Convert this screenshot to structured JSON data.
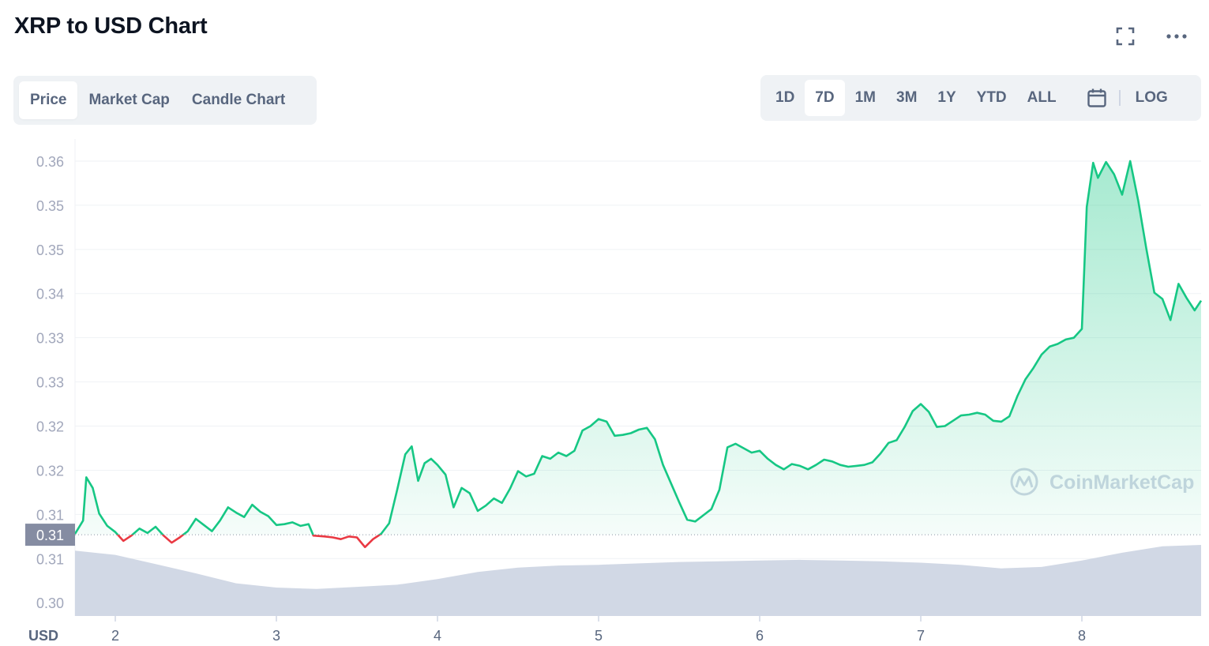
{
  "page": {
    "title": "XRP to USD Chart"
  },
  "header_icons": [
    "expand-icon",
    "more-icon"
  ],
  "tabs": [
    {
      "label": "Price",
      "active": true
    },
    {
      "label": "Market Cap",
      "active": false
    },
    {
      "label": "Candle Chart",
      "active": false
    }
  ],
  "ranges": [
    {
      "label": "1D",
      "active": false
    },
    {
      "label": "7D",
      "active": true
    },
    {
      "label": "1M",
      "active": false
    },
    {
      "label": "3M",
      "active": false
    },
    {
      "label": "1Y",
      "active": false
    },
    {
      "label": "YTD",
      "active": false
    },
    {
      "label": "ALL",
      "active": false
    }
  ],
  "calendar_icon": "calendar-icon",
  "log_label": "LOG",
  "watermark": "CoinMarketCap",
  "colors": {
    "up": "#16c784",
    "down": "#ea3943",
    "volume": "#cfd6e4",
    "text": "#58667e"
  },
  "chart_data": {
    "type": "area",
    "title": "XRP to USD Chart",
    "y_ticks": [
      "0.36",
      "0.35",
      "0.35",
      "0.34",
      "0.33",
      "0.33",
      "0.32",
      "0.32",
      "0.31",
      "0.31",
      "0.30"
    ],
    "y_tick_values": [
      0.36,
      0.355,
      0.35,
      0.345,
      0.34,
      0.335,
      0.33,
      0.325,
      0.32,
      0.315,
      0.31
    ],
    "ylim": [
      0.3085,
      0.3625
    ],
    "x_ticks": [
      "2",
      "3",
      "4",
      "5",
      "6",
      "7",
      "8"
    ],
    "x_tick_values": [
      2,
      3,
      4,
      5,
      6,
      7,
      8
    ],
    "xlim": [
      1.75,
      8.74
    ],
    "x_unit_label": "USD",
    "baseline_label": "0.31",
    "baseline": 0.3177,
    "grid": true,
    "series": [
      {
        "points": [
          [
            1.75,
            0.3178
          ],
          [
            1.8,
            0.3193
          ],
          [
            1.82,
            0.3242
          ],
          [
            1.86,
            0.323
          ],
          [
            1.9,
            0.3201
          ],
          [
            1.95,
            0.3187
          ],
          [
            2.0,
            0.318
          ],
          [
            2.05,
            0.317
          ],
          [
            2.1,
            0.3176
          ],
          [
            2.15,
            0.3184
          ],
          [
            2.2,
            0.3179
          ],
          [
            2.25,
            0.3186
          ],
          [
            2.3,
            0.3176
          ],
          [
            2.35,
            0.3168
          ],
          [
            2.4,
            0.3174
          ],
          [
            2.45,
            0.3181
          ],
          [
            2.5,
            0.3195
          ],
          [
            2.55,
            0.3188
          ],
          [
            2.6,
            0.3181
          ],
          [
            2.65,
            0.3193
          ],
          [
            2.7,
            0.3208
          ],
          [
            2.75,
            0.3202
          ],
          [
            2.8,
            0.3197
          ],
          [
            2.85,
            0.3211
          ],
          [
            2.9,
            0.3203
          ],
          [
            2.95,
            0.3198
          ],
          [
            3.0,
            0.3188
          ],
          [
            3.05,
            0.3189
          ],
          [
            3.1,
            0.3191
          ],
          [
            3.15,
            0.3187
          ],
          [
            3.2,
            0.3189
          ],
          [
            3.23,
            0.3176
          ],
          [
            3.3,
            0.3175
          ],
          [
            3.35,
            0.3174
          ],
          [
            3.4,
            0.3172
          ],
          [
            3.45,
            0.3175
          ],
          [
            3.5,
            0.3174
          ],
          [
            3.55,
            0.3163
          ],
          [
            3.6,
            0.3172
          ],
          [
            3.65,
            0.3178
          ],
          [
            3.7,
            0.319
          ],
          [
            3.75,
            0.3228
          ],
          [
            3.8,
            0.3268
          ],
          [
            3.84,
            0.3277
          ],
          [
            3.88,
            0.3238
          ],
          [
            3.92,
            0.3258
          ],
          [
            3.96,
            0.3263
          ],
          [
            4.0,
            0.3256
          ],
          [
            4.05,
            0.3245
          ],
          [
            4.1,
            0.3208
          ],
          [
            4.15,
            0.323
          ],
          [
            4.2,
            0.3224
          ],
          [
            4.25,
            0.3204
          ],
          [
            4.3,
            0.321
          ],
          [
            4.35,
            0.3218
          ],
          [
            4.4,
            0.3213
          ],
          [
            4.45,
            0.3229
          ],
          [
            4.5,
            0.3249
          ],
          [
            4.55,
            0.3243
          ],
          [
            4.6,
            0.3246
          ],
          [
            4.65,
            0.3266
          ],
          [
            4.7,
            0.3263
          ],
          [
            4.75,
            0.327
          ],
          [
            4.8,
            0.3266
          ],
          [
            4.85,
            0.3272
          ],
          [
            4.9,
            0.3295
          ],
          [
            4.95,
            0.33
          ],
          [
            5.0,
            0.3308
          ],
          [
            5.05,
            0.3305
          ],
          [
            5.1,
            0.3289
          ],
          [
            5.15,
            0.329
          ],
          [
            5.2,
            0.3292
          ],
          [
            5.25,
            0.3296
          ],
          [
            5.3,
            0.3298
          ],
          [
            5.35,
            0.3285
          ],
          [
            5.4,
            0.3256
          ],
          [
            5.45,
            0.3235
          ],
          [
            5.5,
            0.3214
          ],
          [
            5.55,
            0.3194
          ],
          [
            5.6,
            0.3192
          ],
          [
            5.65,
            0.3199
          ],
          [
            5.7,
            0.3206
          ],
          [
            5.75,
            0.3228
          ],
          [
            5.8,
            0.3276
          ],
          [
            5.85,
            0.328
          ],
          [
            5.9,
            0.3275
          ],
          [
            5.95,
            0.327
          ],
          [
            6.0,
            0.3272
          ],
          [
            6.05,
            0.3263
          ],
          [
            6.1,
            0.3256
          ],
          [
            6.15,
            0.3251
          ],
          [
            6.2,
            0.3257
          ],
          [
            6.25,
            0.3255
          ],
          [
            6.3,
            0.3251
          ],
          [
            6.35,
            0.3256
          ],
          [
            6.4,
            0.3262
          ],
          [
            6.45,
            0.326
          ],
          [
            6.5,
            0.3256
          ],
          [
            6.55,
            0.3254
          ],
          [
            6.6,
            0.3255
          ],
          [
            6.65,
            0.3256
          ],
          [
            6.7,
            0.3259
          ],
          [
            6.75,
            0.3269
          ],
          [
            6.8,
            0.3281
          ],
          [
            6.85,
            0.3284
          ],
          [
            6.9,
            0.3299
          ],
          [
            6.95,
            0.3317
          ],
          [
            7.0,
            0.3325
          ],
          [
            7.05,
            0.3316
          ],
          [
            7.1,
            0.3299
          ],
          [
            7.15,
            0.33
          ],
          [
            7.2,
            0.3306
          ],
          [
            7.25,
            0.3312
          ],
          [
            7.3,
            0.3313
          ],
          [
            7.35,
            0.3315
          ],
          [
            7.4,
            0.3313
          ],
          [
            7.45,
            0.3306
          ],
          [
            7.5,
            0.3305
          ],
          [
            7.55,
            0.3311
          ],
          [
            7.6,
            0.3334
          ],
          [
            7.65,
            0.3353
          ],
          [
            7.7,
            0.3366
          ],
          [
            7.75,
            0.3381
          ],
          [
            7.8,
            0.339
          ],
          [
            7.85,
            0.3393
          ],
          [
            7.9,
            0.3398
          ],
          [
            7.95,
            0.34
          ],
          [
            8.0,
            0.341
          ],
          [
            8.03,
            0.3548
          ],
          [
            8.07,
            0.3598
          ],
          [
            8.1,
            0.3581
          ],
          [
            8.15,
            0.3599
          ],
          [
            8.2,
            0.3585
          ],
          [
            8.25,
            0.3562
          ],
          [
            8.3,
            0.36
          ],
          [
            8.35,
            0.3555
          ],
          [
            8.4,
            0.3501
          ],
          [
            8.45,
            0.3451
          ],
          [
            8.5,
            0.3444
          ],
          [
            8.55,
            0.342
          ],
          [
            8.6,
            0.3461
          ],
          [
            8.65,
            0.3445
          ],
          [
            8.7,
            0.3431
          ],
          [
            8.74,
            0.3442
          ]
        ]
      }
    ],
    "volume_series": {
      "points": [
        [
          1.75,
          0.92
        ],
        [
          2.0,
          0.86
        ],
        [
          2.25,
          0.73
        ],
        [
          2.5,
          0.6
        ],
        [
          2.75,
          0.46
        ],
        [
          3.0,
          0.4
        ],
        [
          3.25,
          0.38
        ],
        [
          3.5,
          0.41
        ],
        [
          3.75,
          0.44
        ],
        [
          4.0,
          0.52
        ],
        [
          4.25,
          0.62
        ],
        [
          4.5,
          0.68
        ],
        [
          4.75,
          0.71
        ],
        [
          5.0,
          0.72
        ],
        [
          5.25,
          0.74
        ],
        [
          5.5,
          0.76
        ],
        [
          5.75,
          0.77
        ],
        [
          6.0,
          0.78
        ],
        [
          6.25,
          0.79
        ],
        [
          6.5,
          0.78
        ],
        [
          6.75,
          0.77
        ],
        [
          7.0,
          0.75
        ],
        [
          7.25,
          0.72
        ],
        [
          7.5,
          0.67
        ],
        [
          7.75,
          0.69
        ],
        [
          8.0,
          0.78
        ],
        [
          8.25,
          0.89
        ],
        [
          8.5,
          0.98
        ],
        [
          8.74,
          1.0
        ]
      ]
    }
  }
}
